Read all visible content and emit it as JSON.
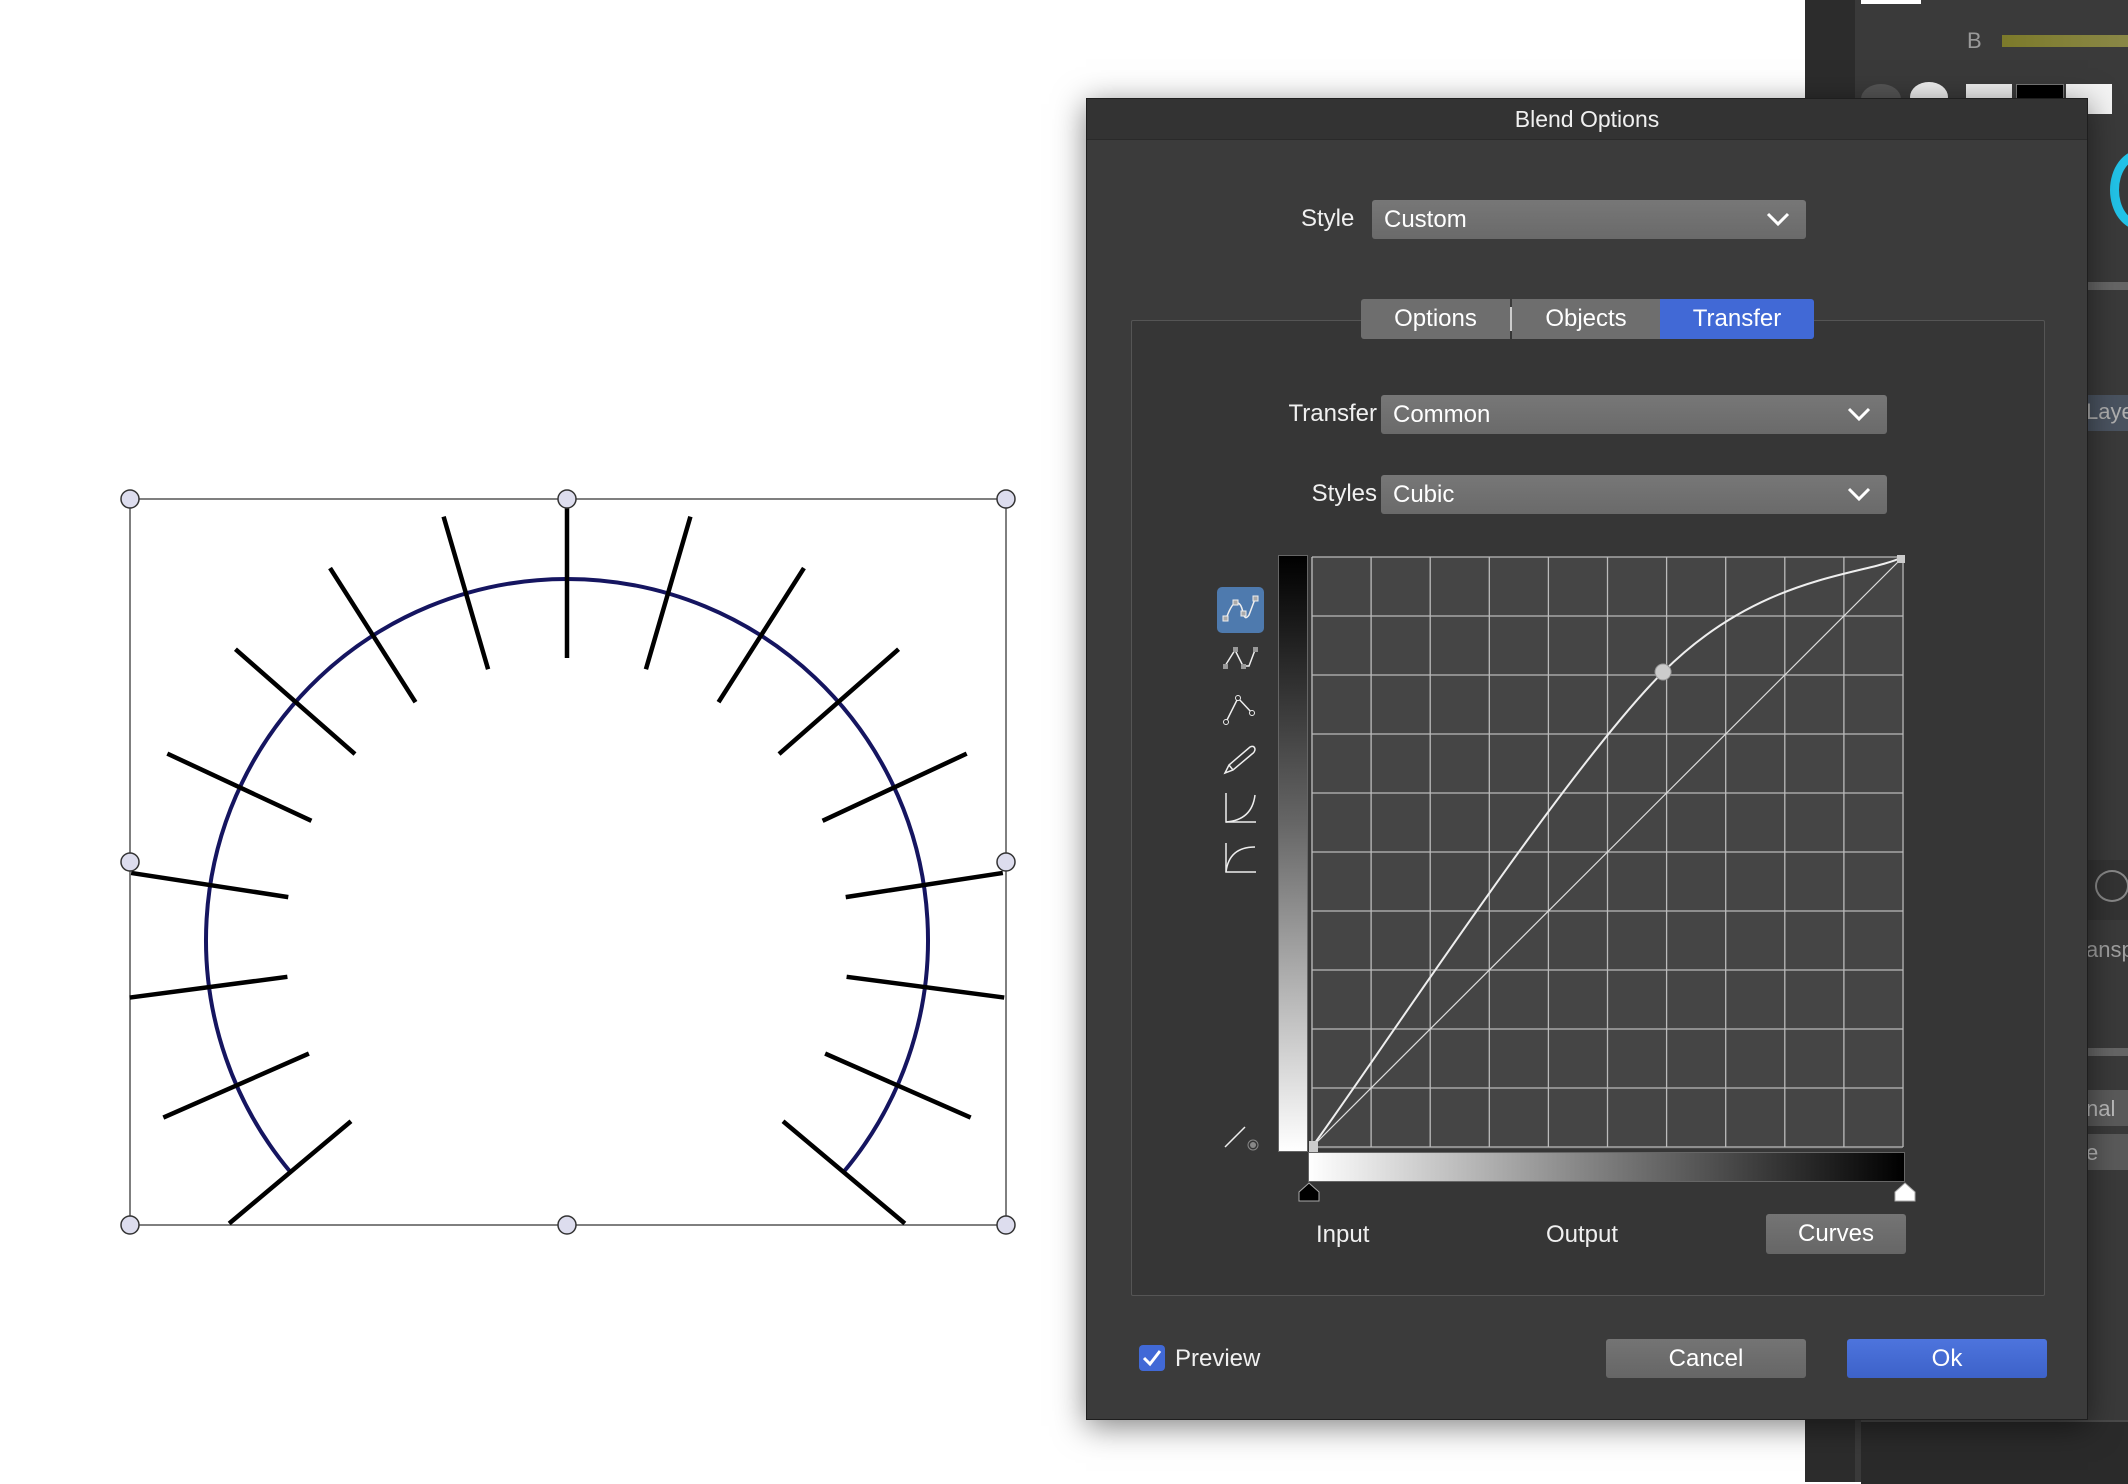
{
  "side_panel": {
    "channel_label": "B",
    "layers_fragment": "Laye",
    "transparency_fragment": "ansp",
    "blend_fragment": "nal",
    "blend_fragment2": "e"
  },
  "dialog": {
    "title": "Blend Options",
    "style_label": "Style",
    "style_value": "Custom",
    "tabs": [
      {
        "label": "Options",
        "active": false
      },
      {
        "label": "Objects",
        "active": false
      },
      {
        "label": "Transfer",
        "active": true
      }
    ],
    "transfer_label": "Transfer",
    "transfer_value": "Common",
    "styles_label": "Styles",
    "styles_value": "Cubic",
    "tools": [
      "smooth-curve-icon",
      "corner-curve-icon",
      "line-points-icon",
      "pencil-icon",
      "ease-in-icon",
      "ease-out-icon"
    ],
    "reset_tool": "linear-reset-icon",
    "curve": {
      "type": "cubic",
      "points": [
        [
          0,
          0
        ],
        [
          0.594,
          0.805
        ],
        [
          1,
          1
        ]
      ],
      "grid_divisions": 10
    },
    "input_label": "Input",
    "output_label": "Output",
    "curves_button": "Curves",
    "preview_label": "Preview",
    "preview_checked": true,
    "cancel_button": "Cancel",
    "ok_button": "Ok",
    "accent_color": "#4169d6"
  }
}
